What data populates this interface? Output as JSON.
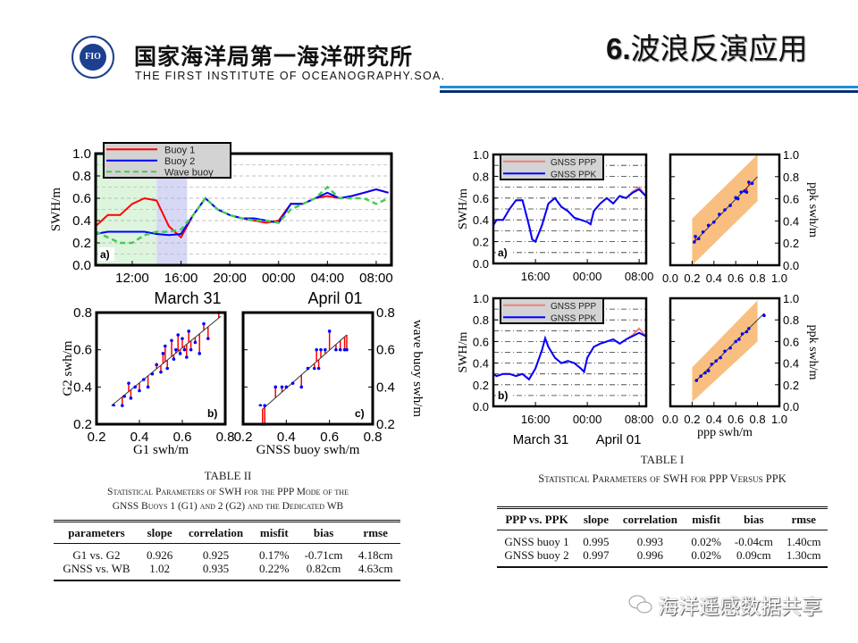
{
  "header": {
    "logo_text": "FIO",
    "org_name_cn": "国家海洋局第一海洋研究所",
    "org_name_en": "THE FIRST INSTITUTE OF OCEANOGRAPHY.SOA.",
    "slide_number": "6.",
    "slide_title": "波浪反演应用",
    "accent_colors": [
      "#1f8fd6",
      "#0b2d6e"
    ]
  },
  "watermark": {
    "text": "海洋遥感数据共享",
    "icon": "wechat-icon"
  },
  "table_ii": {
    "title": "TABLE II",
    "caption_line1": "Statistical Parameters of SWH for the PPP Mode of the",
    "caption_line2": "GNSS Buoys 1 (G1) and 2 (G2) and the Dedicated WB",
    "headers": [
      "parameters",
      "slope",
      "correlation",
      "misfit",
      "bias",
      "rmse"
    ],
    "rows": [
      [
        "G1 vs. G2",
        "0.926",
        "0.925",
        "0.17%",
        "-0.71cm",
        "4.18cm"
      ],
      [
        "GNSS vs. WB",
        "1.02",
        "0.935",
        "0.22%",
        "0.82cm",
        "4.63cm"
      ]
    ]
  },
  "table_i": {
    "title": "TABLE I",
    "caption": "Statistical Parameters of SWH for PPP Versus PPK",
    "headers": [
      "PPP vs. PPK",
      "slope",
      "correlation",
      "misfit",
      "bias",
      "rmse"
    ],
    "rows": [
      [
        "GNSS buoy 1",
        "0.995",
        "0.993",
        "0.02%",
        "-0.04cm",
        "1.40cm"
      ],
      [
        "GNSS buoy 2",
        "0.997",
        "0.996",
        "0.02%",
        "0.09cm",
        "1.30cm"
      ]
    ]
  },
  "chart_data": [
    {
      "type": "line",
      "panel_label": "a)",
      "ylabel": "SWH/m",
      "ylim": [
        0,
        1
      ],
      "yticks": [
        "0.0",
        "0.2",
        "0.4",
        "0.6",
        "0.8",
        "1.0"
      ],
      "xlim": [
        "03-31 09:00",
        "04-01 09:15"
      ],
      "xticks": [
        [
          "03-31 12:00",
          "12:00"
        ],
        [
          "03-31 16:00",
          "16:00"
        ],
        [
          "03-31 20:00",
          "20:00"
        ],
        [
          "04-01 00:00",
          "00:00"
        ],
        [
          "04-01 04:00",
          "04:00"
        ],
        [
          "04-01 08:00",
          "08:00"
        ]
      ],
      "date_labels": [
        "March 31",
        "April 01"
      ],
      "grid": true,
      "legend": "top-left",
      "shaded_periods": [
        {
          "from": "03-31 09:00",
          "to": "03-31 14:00",
          "color": "#ddf5dd"
        },
        {
          "from": "03-31 14:00",
          "to": "03-31 16:30",
          "color": "#d6d8f6"
        }
      ],
      "x": [
        "03-31 09:00",
        "03-31 10:00",
        "03-31 11:00",
        "03-31 12:00",
        "03-31 13:00",
        "03-31 14:00",
        "03-31 15:00",
        "03-31 16:00",
        "03-31 17:00",
        "03-31 18:00",
        "03-31 19:00",
        "03-31 20:00",
        "03-31 21:00",
        "03-31 22:00",
        "03-31 23:00",
        "04-01 00:00",
        "04-01 01:00",
        "04-01 02:00",
        "04-01 03:00",
        "04-01 04:00",
        "04-01 05:00",
        "04-01 06:00",
        "04-01 07:00",
        "04-01 08:00",
        "04-01 09:00"
      ],
      "series": [
        {
          "name": "Buoy 1",
          "color": "#ff0000",
          "style": "solid",
          "values": [
            0.35,
            0.45,
            0.45,
            0.55,
            0.6,
            0.58,
            0.35,
            0.25,
            0.45,
            0.6,
            0.5,
            0.45,
            0.42,
            0.4,
            0.38,
            0.4,
            0.55,
            0.55,
            0.6,
            0.62,
            0.6,
            0.62,
            0.65,
            0.68,
            0.65
          ]
        },
        {
          "name": "Buoy 2",
          "color": "#0000ff",
          "style": "solid",
          "values": [
            0.28,
            0.3,
            0.3,
            0.3,
            0.3,
            0.28,
            0.27,
            0.28,
            0.45,
            0.6,
            0.5,
            0.45,
            0.42,
            0.42,
            0.4,
            0.38,
            0.55,
            0.55,
            0.6,
            0.65,
            0.6,
            0.62,
            0.65,
            0.68,
            0.65
          ]
        },
        {
          "name": "Wave buoy",
          "color": "#44cc55",
          "style": "dashed",
          "values": [
            0.3,
            0.25,
            0.2,
            0.2,
            0.27,
            0.3,
            0.3,
            0.32,
            0.45,
            0.6,
            0.5,
            0.45,
            0.42,
            0.4,
            0.4,
            0.38,
            0.5,
            0.55,
            0.6,
            0.7,
            0.6,
            0.6,
            0.6,
            0.55,
            0.6
          ]
        }
      ]
    },
    {
      "type": "scatter",
      "panel_label": "b)",
      "xlabel": "G1 swh/m",
      "ylabel": "G2 swh/m",
      "xlim": [
        0.2,
        0.8
      ],
      "ylim": [
        0.2,
        0.8
      ],
      "xticks": [
        "0.2",
        "0.4",
        "0.6",
        "0.8"
      ],
      "yticks": [
        "0.2",
        "0.4",
        "0.6",
        "0.8"
      ],
      "fit_line": [
        [
          0.27,
          0.3
        ],
        [
          0.78,
          0.78
        ]
      ],
      "point_color": "#0000ff",
      "residual_color": "#ff0000",
      "points": [
        [
          0.28,
          0.3
        ],
        [
          0.32,
          0.3
        ],
        [
          0.33,
          0.35
        ],
        [
          0.35,
          0.42
        ],
        [
          0.36,
          0.34
        ],
        [
          0.38,
          0.4
        ],
        [
          0.4,
          0.38
        ],
        [
          0.42,
          0.44
        ],
        [
          0.44,
          0.4
        ],
        [
          0.46,
          0.47
        ],
        [
          0.48,
          0.52
        ],
        [
          0.5,
          0.48
        ],
        [
          0.51,
          0.58
        ],
        [
          0.52,
          0.62
        ],
        [
          0.53,
          0.5
        ],
        [
          0.55,
          0.65
        ],
        [
          0.56,
          0.55
        ],
        [
          0.57,
          0.6
        ],
        [
          0.58,
          0.68
        ],
        [
          0.59,
          0.58
        ],
        [
          0.6,
          0.66
        ],
        [
          0.61,
          0.6
        ],
        [
          0.62,
          0.56
        ],
        [
          0.63,
          0.7
        ],
        [
          0.64,
          0.6
        ],
        [
          0.66,
          0.64
        ],
        [
          0.68,
          0.58
        ],
        [
          0.7,
          0.74
        ],
        [
          0.72,
          0.66
        ],
        [
          0.77,
          0.8
        ]
      ]
    },
    {
      "type": "scatter",
      "panel_label": "c)",
      "xlabel": "GNSS buoy swh/m",
      "ylabel": "wave buoy swh/m",
      "xlim": [
        0.2,
        0.8
      ],
      "ylim": [
        0.2,
        0.8
      ],
      "xticks": [
        "0.2",
        "0.4",
        "0.6",
        "0.8"
      ],
      "yticks": [
        "0.2",
        "0.4",
        "0.6",
        "0.8"
      ],
      "fit_line": [
        [
          0.28,
          0.27
        ],
        [
          0.68,
          0.68
        ]
      ],
      "point_color": "#0000ff",
      "residual_color": "#ff0000",
      "points": [
        [
          0.28,
          0.3
        ],
        [
          0.29,
          0.2
        ],
        [
          0.3,
          0.2
        ],
        [
          0.3,
          0.3
        ],
        [
          0.35,
          0.4
        ],
        [
          0.38,
          0.4
        ],
        [
          0.4,
          0.4
        ],
        [
          0.43,
          0.42
        ],
        [
          0.47,
          0.4
        ],
        [
          0.5,
          0.5
        ],
        [
          0.53,
          0.5
        ],
        [
          0.54,
          0.6
        ],
        [
          0.55,
          0.5
        ],
        [
          0.56,
          0.6
        ],
        [
          0.58,
          0.6
        ],
        [
          0.6,
          0.7
        ],
        [
          0.63,
          0.6
        ],
        [
          0.65,
          0.6
        ],
        [
          0.67,
          0.6
        ],
        [
          0.68,
          0.6
        ]
      ]
    },
    {
      "type": "line",
      "panel_label": "a)",
      "ylabel": "SWH/m",
      "ylim": [
        0,
        1
      ],
      "yticks": [
        "0.0",
        "0.2",
        "0.4",
        "0.6",
        "0.8",
        "1.0"
      ],
      "xlim": [
        "03-31 09:30",
        "04-01 09:05"
      ],
      "xticks": [
        [
          "03-31 16:00",
          "16:00"
        ],
        [
          "04-01 00:00",
          "00:00"
        ],
        [
          "04-01 08:00",
          "08:00"
        ]
      ],
      "grid": true,
      "legend": "top-left",
      "x": [
        "03-31 09:30",
        "03-31 10:00",
        "03-31 11:00",
        "03-31 12:00",
        "03-31 13:00",
        "03-31 14:00",
        "03-31 15:00",
        "03-31 15:30",
        "03-31 16:00",
        "03-31 17:00",
        "03-31 18:00",
        "03-31 19:00",
        "03-31 20:00",
        "03-31 21:00",
        "03-31 22:00",
        "03-31 23:00",
        "04-01 00:00",
        "04-01 00:30",
        "04-01 01:00",
        "04-01 02:00",
        "04-01 03:00",
        "04-01 04:00",
        "04-01 05:00",
        "04-01 06:00",
        "04-01 07:00",
        "04-01 08:00",
        "04-01 09:00"
      ],
      "series": [
        {
          "name": "GNSS PPP",
          "color": "#f08080",
          "style": "solid",
          "values": [
            0.35,
            0.4,
            0.4,
            0.5,
            0.58,
            0.58,
            0.35,
            0.22,
            0.2,
            0.35,
            0.55,
            0.6,
            0.52,
            0.48,
            0.42,
            0.4,
            0.38,
            0.36,
            0.48,
            0.55,
            0.6,
            0.55,
            0.62,
            0.6,
            0.66,
            0.7,
            0.62
          ]
        },
        {
          "name": "GNSS PPK",
          "color": "#0000ff",
          "style": "solid",
          "values": [
            0.35,
            0.4,
            0.4,
            0.5,
            0.58,
            0.58,
            0.35,
            0.22,
            0.2,
            0.35,
            0.55,
            0.6,
            0.52,
            0.48,
            0.42,
            0.4,
            0.38,
            0.36,
            0.48,
            0.55,
            0.6,
            0.55,
            0.62,
            0.6,
            0.65,
            0.68,
            0.62
          ]
        }
      ]
    },
    {
      "type": "scatter",
      "ylabel": "ppk swh/m",
      "xlim": [
        0,
        1
      ],
      "ylim": [
        0,
        1
      ],
      "xticks": [
        "0.0",
        "0.2",
        "0.4",
        "0.6",
        "0.8",
        "1.0"
      ],
      "yticks": [
        "0.0",
        "0.2",
        "0.4",
        "0.6",
        "0.8",
        "1.0"
      ],
      "band": {
        "x": [
          0.2,
          0.8
        ],
        "lower": [
          0.0,
          0.58
        ],
        "upper": [
          0.42,
          1.0
        ],
        "color": "#f9bf80"
      },
      "fit_line": [
        [
          0.22,
          0.21
        ],
        [
          0.8,
          0.8
        ]
      ],
      "point_color": "#0000ff",
      "residual_color": "#ff0000",
      "points": [
        [
          0.22,
          0.21
        ],
        [
          0.23,
          0.26
        ],
        [
          0.26,
          0.24
        ],
        [
          0.3,
          0.3
        ],
        [
          0.35,
          0.36
        ],
        [
          0.4,
          0.39
        ],
        [
          0.45,
          0.46
        ],
        [
          0.5,
          0.5
        ],
        [
          0.55,
          0.54
        ],
        [
          0.6,
          0.61
        ],
        [
          0.62,
          0.6
        ],
        [
          0.65,
          0.66
        ],
        [
          0.68,
          0.67
        ],
        [
          0.7,
          0.66
        ],
        [
          0.72,
          0.75
        ],
        [
          0.75,
          0.74
        ]
      ]
    },
    {
      "type": "line",
      "panel_label": "b)",
      "ylabel": "SWH/m",
      "ylim": [
        0,
        1
      ],
      "yticks": [
        "0.0",
        "0.2",
        "0.4",
        "0.6",
        "0.8",
        "1.0"
      ],
      "xlim": [
        "03-31 09:30",
        "04-01 09:05"
      ],
      "xticks": [
        [
          "03-31 16:00",
          "16:00"
        ],
        [
          "04-01 00:00",
          "00:00"
        ],
        [
          "04-01 08:00",
          "08:00"
        ]
      ],
      "date_labels": [
        "March 31",
        "April 01"
      ],
      "grid": true,
      "legend": "top-left",
      "x": [
        "03-31 09:30",
        "03-31 10:00",
        "03-31 11:00",
        "03-31 12:00",
        "03-31 13:00",
        "03-31 14:00",
        "03-31 15:00",
        "03-31 16:00",
        "03-31 17:00",
        "03-31 17:30",
        "03-31 18:00",
        "03-31 19:00",
        "03-31 20:00",
        "03-31 21:00",
        "03-31 22:00",
        "03-31 23:00",
        "03-31 23:30",
        "04-01 00:00",
        "04-01 01:00",
        "04-01 02:00",
        "04-01 03:00",
        "04-01 04:00",
        "04-01 05:00",
        "04-01 06:00",
        "04-01 07:00",
        "04-01 08:00",
        "04-01 09:00"
      ],
      "series": [
        {
          "name": "GNSS PPP",
          "color": "#f08080",
          "style": "solid",
          "values": [
            0.3,
            0.28,
            0.3,
            0.3,
            0.28,
            0.3,
            0.25,
            0.35,
            0.52,
            0.63,
            0.55,
            0.45,
            0.4,
            0.42,
            0.4,
            0.35,
            0.32,
            0.45,
            0.55,
            0.58,
            0.6,
            0.62,
            0.58,
            0.62,
            0.66,
            0.72,
            0.65
          ]
        },
        {
          "name": "GNSS PPK",
          "color": "#0000ff",
          "style": "solid",
          "values": [
            0.3,
            0.28,
            0.3,
            0.3,
            0.28,
            0.3,
            0.25,
            0.35,
            0.52,
            0.63,
            0.55,
            0.45,
            0.4,
            0.42,
            0.4,
            0.35,
            0.32,
            0.45,
            0.55,
            0.58,
            0.6,
            0.62,
            0.58,
            0.62,
            0.65,
            0.68,
            0.65
          ]
        }
      ]
    },
    {
      "type": "scatter",
      "xlabel": "ppp swh/m",
      "ylabel": "ppk swh/m",
      "xlim": [
        0,
        1
      ],
      "ylim": [
        0,
        1
      ],
      "xticks": [
        "0.0",
        "0.2",
        "0.4",
        "0.6",
        "0.8",
        "1.0"
      ],
      "yticks": [
        "0.0",
        "0.2",
        "0.4",
        "0.6",
        "0.8",
        "1.0"
      ],
      "band": {
        "x": [
          0.2,
          0.8
        ],
        "lower": [
          0.04,
          0.6
        ],
        "upper": [
          0.36,
          0.98
        ],
        "color": "#f9bf80"
      },
      "fit_line": [
        [
          0.24,
          0.24
        ],
        [
          0.86,
          0.86
        ]
      ],
      "point_color": "#0000ff",
      "residual_color": "#ff0000",
      "points": [
        [
          0.24,
          0.24
        ],
        [
          0.28,
          0.28
        ],
        [
          0.32,
          0.31
        ],
        [
          0.35,
          0.33
        ],
        [
          0.38,
          0.39
        ],
        [
          0.42,
          0.42
        ],
        [
          0.46,
          0.45
        ],
        [
          0.5,
          0.51
        ],
        [
          0.55,
          0.54
        ],
        [
          0.6,
          0.6
        ],
        [
          0.63,
          0.62
        ],
        [
          0.66,
          0.67
        ],
        [
          0.7,
          0.69
        ],
        [
          0.72,
          0.72
        ],
        [
          0.86,
          0.84
        ]
      ]
    }
  ]
}
